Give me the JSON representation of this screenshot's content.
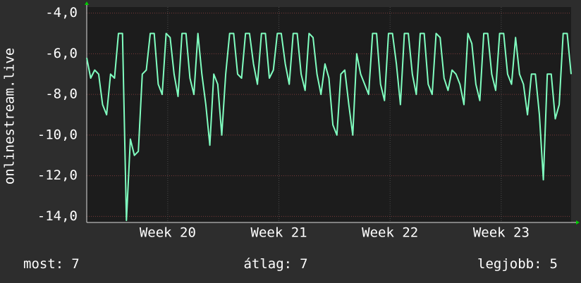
{
  "chart_data": {
    "type": "line",
    "y_label": "onlinestream.live",
    "color": "#80ffc0",
    "x": [
      0,
      0.25,
      0.5,
      0.75,
      1,
      1.25,
      1.5,
      1.75,
      2,
      2.25,
      2.5,
      2.75,
      3,
      3.25,
      3.5,
      3.75,
      4,
      4.25,
      4.5,
      4.75,
      5,
      5.25,
      5.5,
      5.75,
      6,
      6.25,
      6.5,
      6.75,
      7,
      7.25,
      7.5,
      7.75,
      8,
      8.25,
      8.5,
      8.75,
      9,
      9.25,
      9.5,
      9.75,
      10,
      10.25,
      10.5,
      10.75,
      11,
      11.25,
      11.5,
      11.75,
      12,
      12.25,
      12.5,
      12.75,
      13,
      13.25,
      13.5,
      13.75,
      14,
      14.25,
      14.5,
      14.75,
      15,
      15.25,
      15.5,
      15.75,
      16,
      16.25,
      16.5,
      16.75,
      17,
      17.25,
      17.5,
      17.75,
      18,
      18.25,
      18.5,
      18.75,
      19,
      19.25,
      19.5,
      19.75,
      20,
      20.25,
      20.5,
      20.75,
      21,
      21.25,
      21.5,
      21.75,
      22,
      22.25,
      22.5,
      22.75,
      23,
      23.25,
      23.5,
      23.75,
      24,
      24.25,
      24.5,
      24.75,
      25,
      25.25,
      25.5,
      25.75,
      26,
      26.25,
      26.5,
      26.75,
      27,
      27.25,
      27.5,
      27.75,
      28,
      28.25,
      28.5,
      28.75,
      29,
      29.25,
      29.5,
      29.75,
      30,
      30.25,
      30.5
    ],
    "values": [
      -6.2,
      -7.2,
      -6.8,
      -7.0,
      -8.5,
      -9.0,
      -7.0,
      -7.2,
      -5.0,
      -5.0,
      -14.2,
      -10.2,
      -11.0,
      -10.8,
      -7.0,
      -6.8,
      -5.0,
      -5.0,
      -7.5,
      -8.0,
      -5.0,
      -5.2,
      -7.0,
      -8.1,
      -5.0,
      -5.0,
      -7.2,
      -8.0,
      -5.0,
      -7.0,
      -8.5,
      -10.5,
      -7.0,
      -7.5,
      -10.0,
      -7.0,
      -5.0,
      -5.0,
      -7.0,
      -7.2,
      -5.0,
      -5.0,
      -6.5,
      -7.5,
      -5.0,
      -5.0,
      -7.2,
      -6.8,
      -5.0,
      -5.0,
      -6.5,
      -7.5,
      -5.0,
      -5.0,
      -7.0,
      -7.8,
      -5.0,
      -5.2,
      -7.0,
      -8.0,
      -6.5,
      -7.2,
      -9.5,
      -10.0,
      -7.0,
      -6.8,
      -8.5,
      -10.0,
      -6.0,
      -7.0,
      -7.5,
      -8.0,
      -5.0,
      -5.0,
      -7.5,
      -8.3,
      -5.0,
      -5.0,
      -6.5,
      -8.5,
      -5.0,
      -5.0,
      -7.0,
      -8.0,
      -5.0,
      -5.0,
      -7.5,
      -8.0,
      -5.0,
      -5.2,
      -7.2,
      -7.8,
      -6.8,
      -7.0,
      -7.5,
      -8.5,
      -5.0,
      -5.5,
      -7.5,
      -8.3,
      -5.0,
      -5.0,
      -7.0,
      -7.8,
      -5.0,
      -5.0,
      -7.0,
      -7.5,
      -5.2,
      -7.0,
      -7.5,
      -9.0,
      -7.0,
      -7.0,
      -9.0,
      -12.2,
      -7.0,
      -7.0,
      -9.2,
      -8.5,
      -5.0,
      -5.0,
      -7.0
    ],
    "xlim": [
      0,
      30.5
    ],
    "xticks": [
      {
        "value": 5.1,
        "label": "Week 20"
      },
      {
        "value": 12.1,
        "label": "Week 21"
      },
      {
        "value": 19.1,
        "label": "Week 22"
      },
      {
        "value": 26.1,
        "label": "Week 23"
      }
    ],
    "ylim": [
      -14.3,
      -3.7
    ],
    "yticks": [
      {
        "value": -4,
        "label": "-4,0"
      },
      {
        "value": -6,
        "label": "-6,0"
      },
      {
        "value": -8,
        "label": "-8,0"
      },
      {
        "value": -10,
        "label": "-10,0"
      },
      {
        "value": -12,
        "label": "-12,0"
      },
      {
        "value": -14,
        "label": "-14,0"
      }
    ],
    "grid": true,
    "stats": [
      {
        "label": "most:",
        "value": 7
      },
      {
        "label": "átlag:",
        "value": 7
      },
      {
        "label": "legjobb:",
        "value": 5
      }
    ]
  }
}
